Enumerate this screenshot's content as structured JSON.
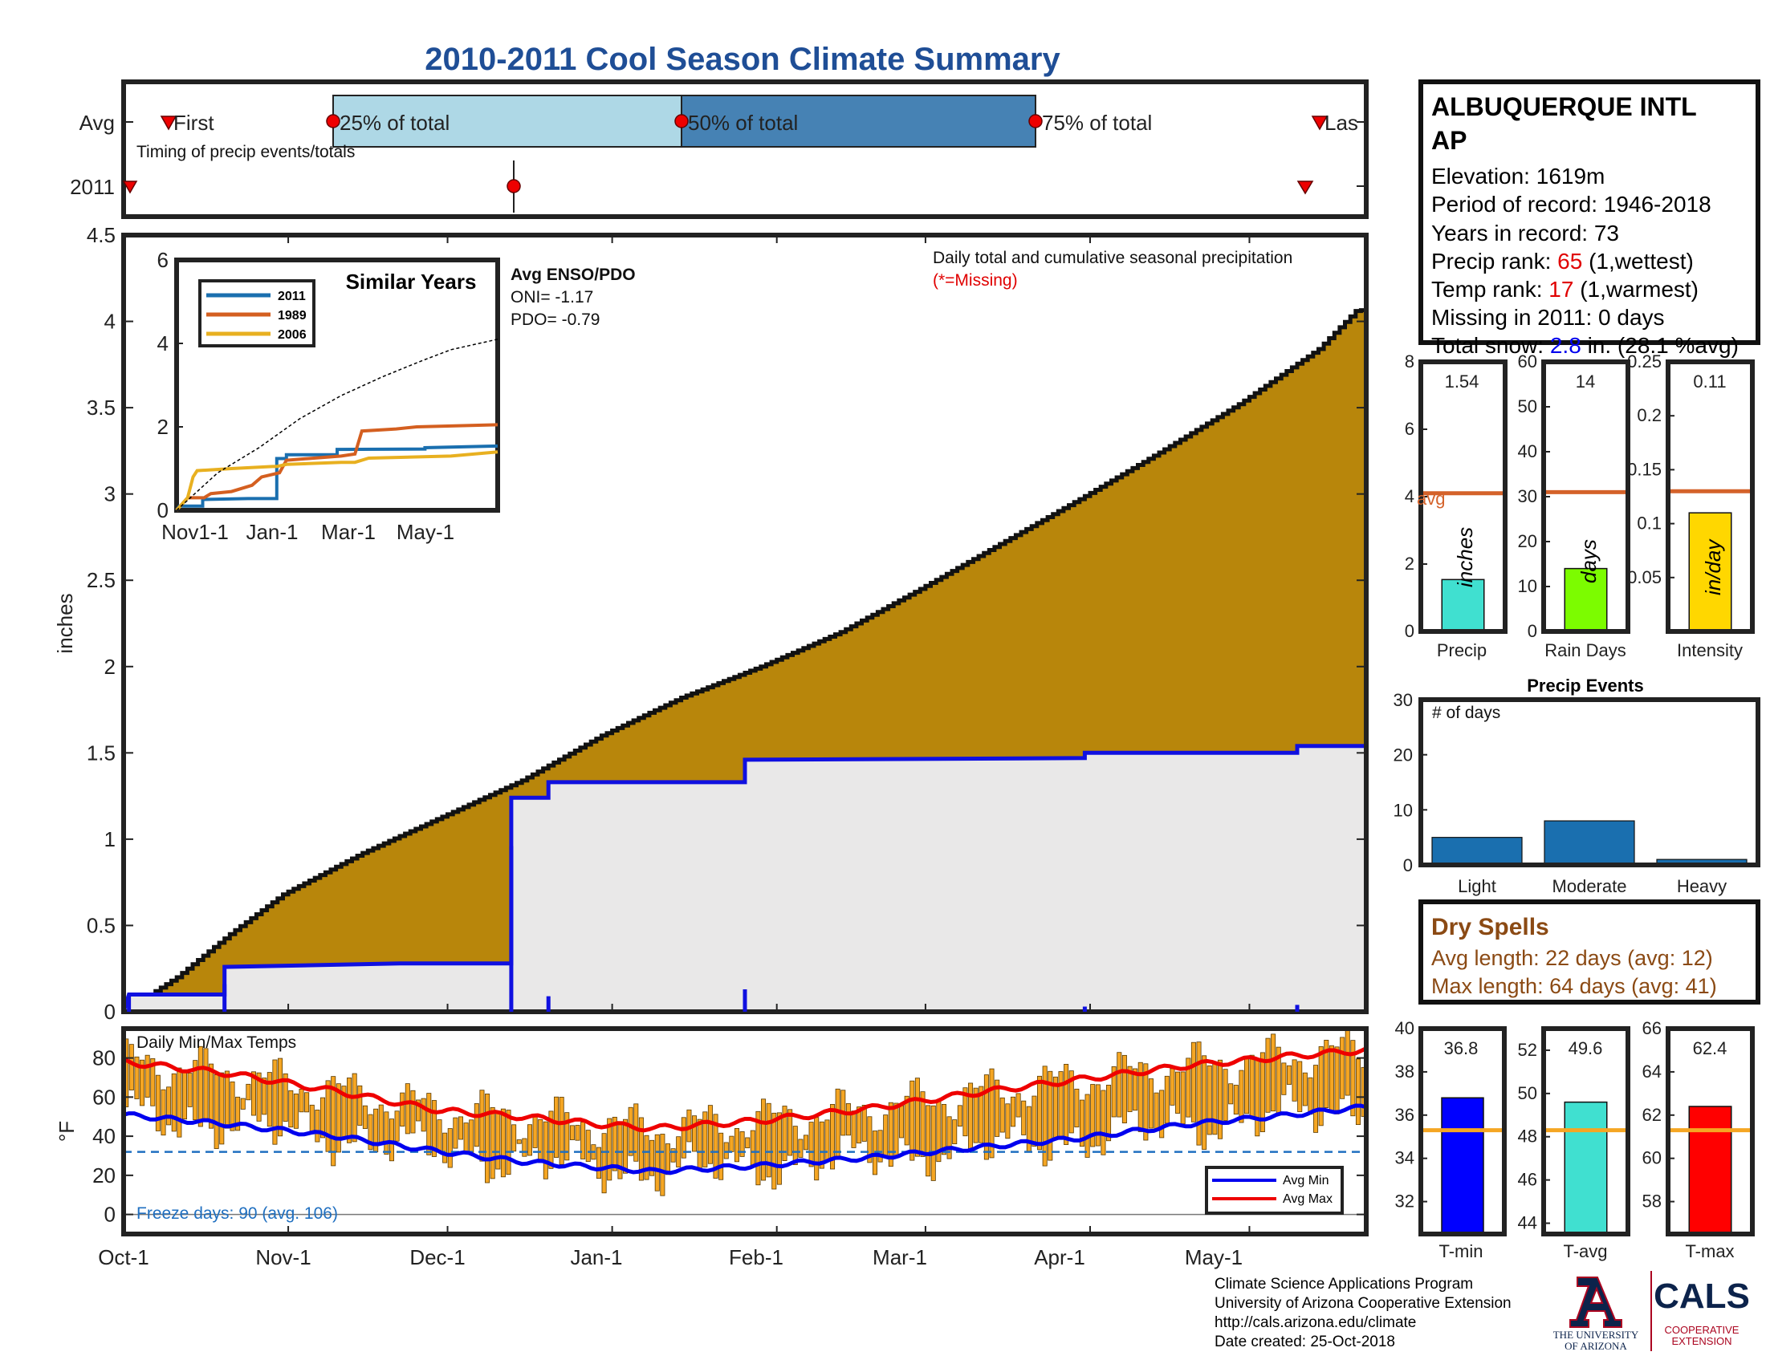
{
  "title": "2010-2011 Cool Season Climate Summary",
  "colors": {
    "title": "#1f4e96",
    "cumulative_avg": "#b8860b",
    "season_total": "#1010e0",
    "season_fill": "#e9e8e8",
    "bar_temp": "#f5a623",
    "avg_min": "#0000ee",
    "avg_max": "#ee0000",
    "avg_line": "#d4622a",
    "freeze_line": "#1f6fc0",
    "brown_text": "#8b4a14",
    "red_text": "#e00000"
  },
  "timing": {
    "row_labels": [
      "Avg",
      "2011"
    ],
    "caption": "Timing of precip events/totals",
    "marker_labels": [
      "First",
      "25% of total",
      "50% of total",
      "75% of total",
      "Las"
    ]
  },
  "station": {
    "name_line1": "ALBUQUERQUE INTL",
    "name_line2": "AP",
    "elevation": "Elevation: 1619m",
    "period": "Period of record: 1946-2018",
    "years": "Years in record: 73",
    "precip_rank_label": "Precip rank: ",
    "precip_rank_value": "65",
    "precip_rank_note": " (1,wettest)",
    "temp_rank_label": "Temp rank: ",
    "temp_rank_value": "17",
    "temp_rank_note": " (1,warmest)",
    "missing": "Missing in 2011: 0 days",
    "snow_label": "Total snow: ",
    "snow_value": "2.8",
    "snow_note": " in. (28.1 %avg)"
  },
  "main_chart": {
    "ylabel": "inches",
    "note": "Daily total and cumulative seasonal precipitation",
    "missing_note": "(*=Missing)",
    "enso_title": "Avg ENSO/PDO",
    "oni": "ONI= -1.17",
    "pdo": "PDO= -0.79"
  },
  "inset": {
    "title": "Similar Years",
    "xticks": [
      "Nov1-1",
      "Jan-1",
      "Mar-1",
      "May-1"
    ]
  },
  "precip_bars": {
    "avg_label": "avg",
    "units": [
      "inches",
      "days",
      "in/day"
    ],
    "labels": [
      "Precip",
      "Rain Days",
      "Intensity"
    ],
    "values_text": [
      "1.54",
      "14",
      "0.11"
    ]
  },
  "events": {
    "title": "Precip Events",
    "ylabel": "# of days"
  },
  "dry_spells": {
    "title": "Dry Spells",
    "avg_length": "Avg length: 22 days (avg: 12)",
    "max_length": "Max length: 64 days (avg: 41)"
  },
  "temps": {
    "title": "Daily Min/Max Temps",
    "ylabel": "°F",
    "freeze": "Freeze days: 90 (avg. 106)",
    "legend": [
      "Avg Min",
      "Avg Max"
    ],
    "xticks": [
      "Oct-1",
      "Nov-1",
      "Dec-1",
      "Jan-1",
      "Feb-1",
      "Mar-1",
      "Apr-1",
      "May-1"
    ]
  },
  "temp_bars": {
    "labels": [
      "T-min",
      "T-avg",
      "T-max"
    ],
    "values_text": [
      "36.8",
      "49.6",
      "62.4"
    ]
  },
  "footer": {
    "line1": "Climate Science Applications Program",
    "line2": "University of Arizona Cooperative Extension",
    "line3": "http://cals.arizona.edu/climate",
    "line4": " Date created: 25-Oct-2018",
    "ua1": "THE UNIVERSITY",
    "ua2": "OF ARIZONA",
    "cals": "CALS",
    "coop1": "COOPERATIVE",
    "coop2": "EXTENSION"
  },
  "chart_data": [
    {
      "type": "area",
      "name": "daily and cumulative precipitation",
      "ylabel": "inches",
      "ylim": [
        0,
        4.5
      ],
      "yticks": [
        0,
        0.5,
        1,
        1.5,
        2,
        2.5,
        3,
        3.5,
        4,
        4.5
      ],
      "xlim_days": [
        0,
        234
      ],
      "avg_cumulative": [
        [
          0,
          0
        ],
        [
          10,
          0.2
        ],
        [
          20,
          0.45
        ],
        [
          30,
          0.68
        ],
        [
          45,
          0.92
        ],
        [
          60,
          1.13
        ],
        [
          75,
          1.34
        ],
        [
          90,
          1.6
        ],
        [
          105,
          1.82
        ],
        [
          120,
          2.0
        ],
        [
          135,
          2.2
        ],
        [
          150,
          2.45
        ],
        [
          165,
          2.71
        ],
        [
          180,
          2.97
        ],
        [
          195,
          3.24
        ],
        [
          210,
          3.52
        ],
        [
          225,
          3.84
        ],
        [
          232,
          4.06
        ],
        [
          234,
          4.07
        ]
      ],
      "season_2011_cumulative": [
        [
          0,
          0
        ],
        [
          1,
          0.1
        ],
        [
          19,
          0.1
        ],
        [
          19,
          0.26
        ],
        [
          52,
          0.28
        ],
        [
          73,
          0.28
        ],
        [
          73,
          1.24
        ],
        [
          80,
          1.24
        ],
        [
          80,
          1.33
        ],
        [
          117,
          1.33
        ],
        [
          117,
          1.46
        ],
        [
          181,
          1.47
        ],
        [
          181,
          1.5
        ],
        [
          221,
          1.5
        ],
        [
          221,
          1.54
        ],
        [
          234,
          1.54
        ]
      ]
    },
    {
      "type": "line",
      "name": "Similar Years",
      "ylim": [
        0,
        6
      ],
      "yticks": [
        0,
        2,
        4,
        6
      ],
      "series": [
        {
          "name": "2011",
          "color": "#1a6faf",
          "points": [
            [
              0,
              0
            ],
            [
              2,
              0.1
            ],
            [
              19,
              0.1
            ],
            [
              19,
              0.26
            ],
            [
              52,
              0.28
            ],
            [
              73,
              0.28
            ],
            [
              73,
              1.24
            ],
            [
              80,
              1.24
            ],
            [
              80,
              1.33
            ],
            [
              117,
              1.33
            ],
            [
              117,
              1.46
            ],
            [
              181,
              1.47
            ],
            [
              181,
              1.5
            ],
            [
              234,
              1.54
            ]
          ]
        },
        {
          "name": "1989",
          "color": "#d45f20",
          "points": [
            [
              0,
              0
            ],
            [
              8,
              0.3
            ],
            [
              20,
              0.3
            ],
            [
              25,
              0.4
            ],
            [
              40,
              0.45
            ],
            [
              55,
              0.6
            ],
            [
              62,
              0.8
            ],
            [
              75,
              0.9
            ],
            [
              80,
              1.2
            ],
            [
              100,
              1.25
            ],
            [
              120,
              1.3
            ],
            [
              130,
              1.35
            ],
            [
              135,
              1.9
            ],
            [
              160,
              1.95
            ],
            [
              175,
              2.0
            ],
            [
              234,
              2.05
            ]
          ]
        },
        {
          "name": "2006",
          "color": "#e8b020",
          "points": [
            [
              0,
              0
            ],
            [
              8,
              0.3
            ],
            [
              12,
              0.8
            ],
            [
              15,
              0.95
            ],
            [
              40,
              1.0
            ],
            [
              70,
              1.05
            ],
            [
              73,
              1.05
            ],
            [
              80,
              1.1
            ],
            [
              120,
              1.15
            ],
            [
              130,
              1.15
            ],
            [
              140,
              1.25
            ],
            [
              200,
              1.3
            ],
            [
              234,
              1.4
            ]
          ]
        },
        {
          "name": "avg",
          "color": "#000000",
          "dashed": true,
          "points": [
            [
              0,
              0
            ],
            [
              30,
              0.9
            ],
            [
              60,
              1.5
            ],
            [
              90,
              2.2
            ],
            [
              120,
              2.75
            ],
            [
              150,
              3.2
            ],
            [
              180,
              3.6
            ],
            [
              200,
              3.85
            ],
            [
              234,
              4.1
            ]
          ]
        }
      ]
    },
    {
      "type": "bar",
      "name": "Precip",
      "ylim": [
        0,
        8
      ],
      "yticks": [
        0,
        2,
        4,
        6,
        8
      ],
      "values": [
        1.54
      ],
      "avg": 4.1,
      "color": "#40e0d0"
    },
    {
      "type": "bar",
      "name": "Rain Days",
      "ylim": [
        0,
        60
      ],
      "yticks": [
        0,
        10,
        20,
        30,
        40,
        50,
        60
      ],
      "values": [
        14
      ],
      "avg": 31,
      "color": "#7cfc00"
    },
    {
      "type": "bar",
      "name": "Intensity",
      "ylim": [
        0,
        0.25
      ],
      "yticks": [
        0.05,
        0.1,
        0.15,
        0.2,
        0.25
      ],
      "values": [
        0.11
      ],
      "avg": 0.13,
      "color": "#ffd700"
    },
    {
      "type": "bar",
      "name": "Precip Events",
      "ylabel": "# of days",
      "ylim": [
        0,
        30
      ],
      "yticks": [
        0,
        10,
        20,
        30
      ],
      "categories": [
        "Light",
        "Moderate",
        "Heavy"
      ],
      "values": [
        5,
        8,
        1
      ],
      "color": "#1a6faf"
    },
    {
      "type": "bar",
      "name": "Daily Min/Max Temps",
      "ylabel": "°F",
      "ylim": [
        -10,
        95
      ],
      "yticks": [
        0,
        20,
        40,
        60,
        80
      ],
      "freeze_line": 32,
      "avg_min": [
        [
          0,
          51
        ],
        [
          20,
          46
        ],
        [
          40,
          40
        ],
        [
          60,
          32
        ],
        [
          75,
          27
        ],
        [
          90,
          24
        ],
        [
          100,
          22
        ],
        [
          120,
          25
        ],
        [
          140,
          29
        ],
        [
          160,
          34
        ],
        [
          180,
          39
        ],
        [
          200,
          46
        ],
        [
          220,
          51
        ],
        [
          234,
          55
        ]
      ],
      "avg_max": [
        [
          0,
          78
        ],
        [
          20,
          72
        ],
        [
          40,
          63
        ],
        [
          60,
          53
        ],
        [
          75,
          50
        ],
        [
          90,
          46
        ],
        [
          100,
          44
        ],
        [
          120,
          48
        ],
        [
          140,
          54
        ],
        [
          160,
          62
        ],
        [
          180,
          69
        ],
        [
          200,
          76
        ],
        [
          220,
          81
        ],
        [
          234,
          84
        ]
      ],
      "legend": [
        "Avg Min",
        "Avg Max"
      ]
    },
    {
      "type": "bar",
      "name": "T-min",
      "ylim": [
        30.5,
        40
      ],
      "yticks": [
        32,
        34,
        36,
        38,
        40
      ],
      "values": [
        36.8
      ],
      "avg": 35.3,
      "color": "#0000ff"
    },
    {
      "type": "bar",
      "name": "T-avg",
      "ylim": [
        43.5,
        53
      ],
      "yticks": [
        44,
        46,
        48,
        50,
        52
      ],
      "values": [
        49.6
      ],
      "avg": 48.3,
      "color": "#40e0d0"
    },
    {
      "type": "bar",
      "name": "T-max",
      "ylim": [
        56.5,
        66
      ],
      "yticks": [
        58,
        60,
        62,
        64,
        66
      ],
      "values": [
        62.4
      ],
      "avg": 61.3,
      "color": "#ff0000"
    }
  ]
}
